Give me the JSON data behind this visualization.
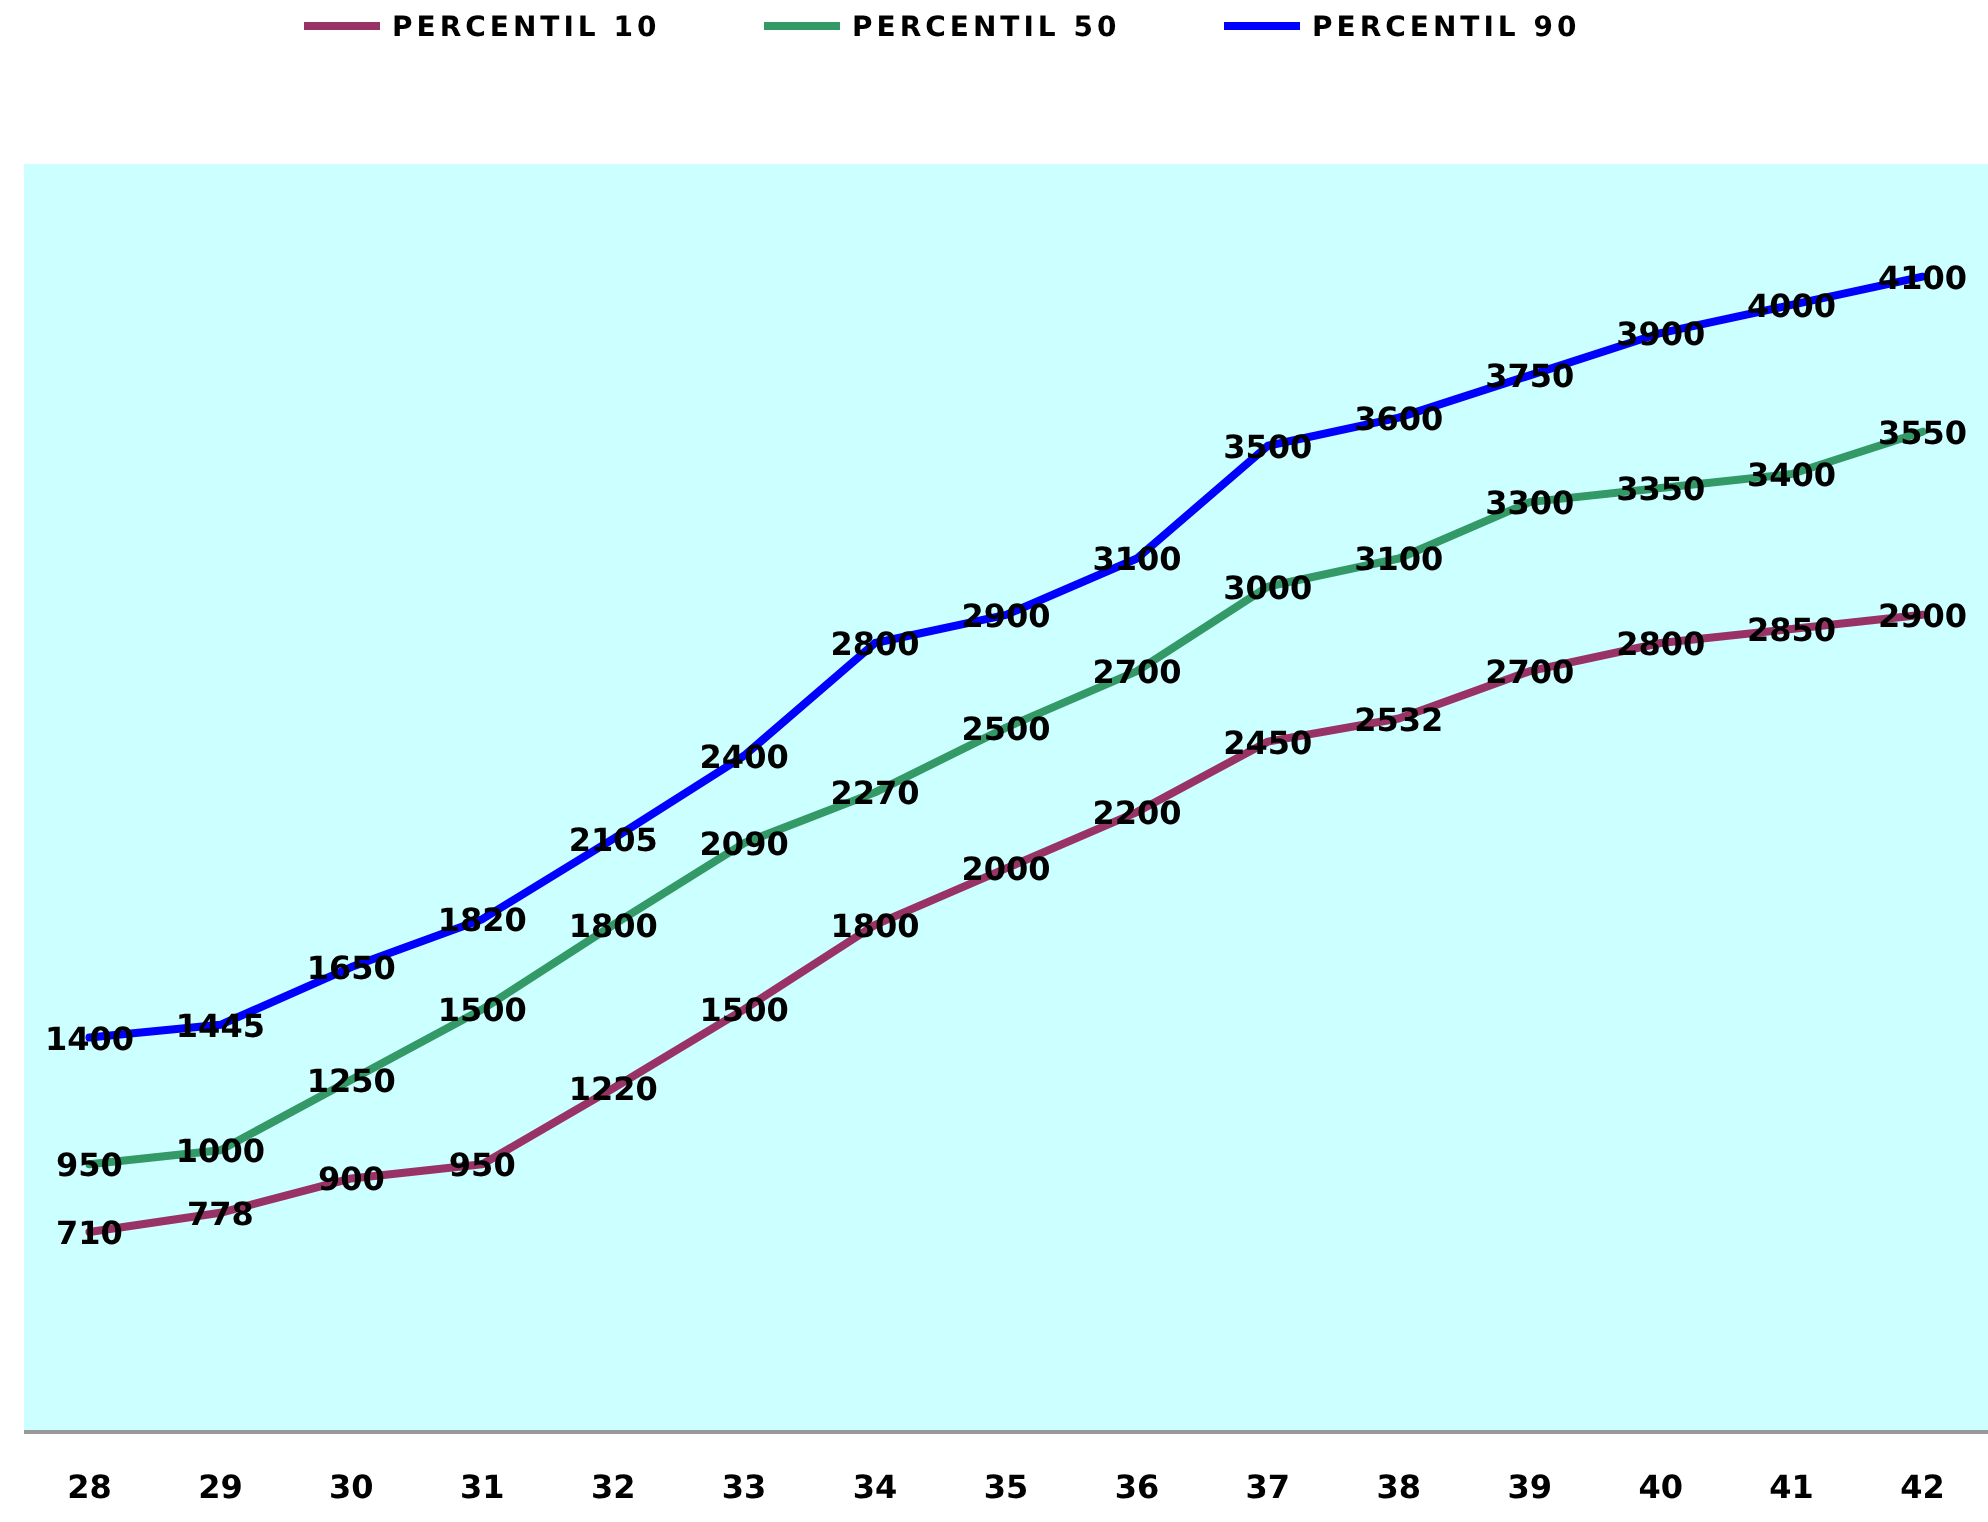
{
  "chart_data": {
    "type": "line",
    "categories": [
      "28",
      "29",
      "30",
      "31",
      "32",
      "33",
      "34",
      "35",
      "36",
      "37",
      "38",
      "39",
      "40",
      "41",
      "42"
    ],
    "series": [
      {
        "name": "PERCENTIL 10",
        "color": "#993366",
        "values": [
          710,
          778,
          900,
          950,
          1220,
          1500,
          1800,
          2000,
          2200,
          2450,
          2532,
          2700,
          2800,
          2850,
          2900
        ]
      },
      {
        "name": "PERCENTIL 50",
        "color": "#339966",
        "values": [
          950,
          1000,
          1250,
          1500,
          1800,
          2090,
          2270,
          2500,
          2700,
          3000,
          3100,
          3300,
          3350,
          3400,
          3550
        ]
      },
      {
        "name": "PERCENTIL 90",
        "color": "#0000ff",
        "values": [
          1400,
          1445,
          1650,
          1820,
          2105,
          2400,
          2800,
          2900,
          3100,
          3500,
          3600,
          3750,
          3900,
          4000,
          4100
        ]
      }
    ],
    "ylim": [
      0,
      4500
    ],
    "tick_labels": "x",
    "data_labels": true,
    "legend": "top",
    "marker": "none",
    "line_style": "solid"
  }
}
